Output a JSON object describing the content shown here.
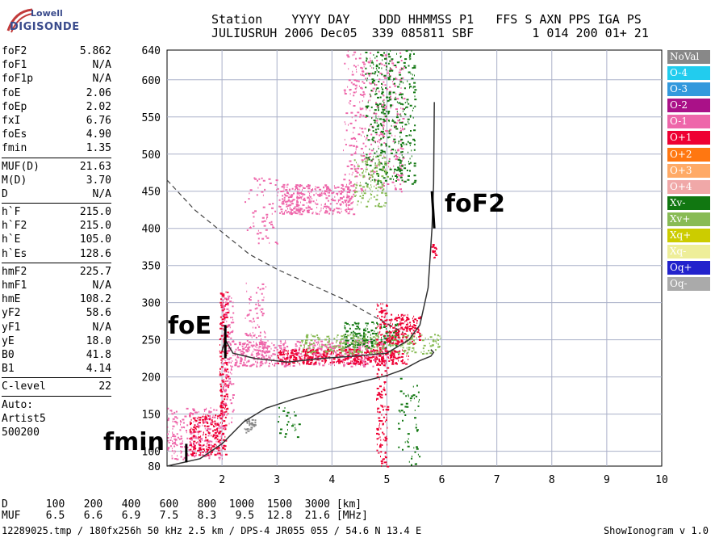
{
  "logo": {
    "top": "Lowell",
    "main": "DIGISONDE"
  },
  "header": {
    "line1": "Station    YYYY DAY    DDD HHMMSS P1   FFS S AXN PPS IGA PS",
    "line2": "JULIUSRUH 2006 Dec05  339 085811 SBF        1 014 200 01+ 21"
  },
  "params": [
    [
      [
        "foF2",
        "5.862"
      ],
      [
        "foF1",
        "N/A"
      ],
      [
        "foF1p",
        "N/A"
      ],
      [
        "foE",
        "2.06"
      ],
      [
        "foEp",
        "2.02"
      ],
      [
        "fxI",
        "6.76"
      ],
      [
        "foEs",
        "4.90"
      ],
      [
        "fmin",
        "1.35"
      ]
    ],
    [
      [
        "MUF(D)",
        "21.63"
      ],
      [
        "M(D)",
        "3.70"
      ],
      [
        "D",
        "N/A"
      ]
    ],
    [
      [
        "h`F",
        "215.0"
      ],
      [
        "h`F2",
        "215.0"
      ],
      [
        "h`E",
        "105.0"
      ],
      [
        "h`Es",
        "128.6"
      ]
    ],
    [
      [
        "hmF2",
        "225.7"
      ],
      [
        "hmF1",
        "N/A"
      ],
      [
        "hmE",
        "108.2"
      ],
      [
        "yF2",
        "58.6"
      ],
      [
        "yF1",
        "N/A"
      ],
      [
        "yE",
        "18.0"
      ],
      [
        "B0",
        "41.8"
      ],
      [
        "B1",
        "4.14"
      ]
    ],
    [
      [
        "C-level",
        "22"
      ]
    ]
  ],
  "auto": [
    "Auto:",
    "Artist5",
    "500200"
  ],
  "legend": [
    {
      "label": "NoVal",
      "color": "#888888"
    },
    {
      "label": "O-4",
      "color": "#22ccee"
    },
    {
      "label": "O-3",
      "color": "#3399dd"
    },
    {
      "label": "O-2",
      "color": "#aa1188"
    },
    {
      "label": "O-1",
      "color": "#ee66aa"
    },
    {
      "label": "O+1",
      "color": "#ee0033"
    },
    {
      "label": "O+2",
      "color": "#ff7711"
    },
    {
      "label": "O+3",
      "color": "#ffaa66"
    },
    {
      "label": "O+4",
      "color": "#f0a8a8"
    },
    {
      "label": "Xv-",
      "color": "#117711"
    },
    {
      "label": "Xv+",
      "color": "#88bb55"
    },
    {
      "label": "Xq+",
      "color": "#cccc00"
    },
    {
      "label": "Xq-",
      "color": "#eeee99"
    },
    {
      "label": "Oq+",
      "color": "#2222cc"
    },
    {
      "label": "Oq-",
      "color": "#aaaaaa"
    }
  ],
  "annotations": {
    "foF2": "foF2",
    "foE": "foE",
    "fmin": "fmin"
  },
  "footer": {
    "d_row": "D      100   200   400   600   800  1000  1500  3000 [km]",
    "muf_row": "MUF    6.5   6.6   6.9   7.5   8.3   9.5  12.8  21.6 [MHz]",
    "info": "12289025.tmp / 180fx256h 50 kHz 2.5 km / DPS-4 JR055 055 / 54.6 N 13.4 E",
    "version": "ShowIonogram v 1.0"
  },
  "chart_data": {
    "type": "scatter",
    "x_ticks": [
      "2",
      "3",
      "4",
      "5",
      "6",
      "7",
      "8",
      "9",
      "10"
    ],
    "y_ticks": [
      "80",
      "100",
      "150",
      "200",
      "250",
      "300",
      "350",
      "400",
      "450",
      "500",
      "550",
      "600",
      "640"
    ],
    "xlim": [
      1,
      10
    ],
    "ylim": [
      80,
      640
    ],
    "grid": true,
    "profile_curve": [
      [
        1.0,
        80
      ],
      [
        1.6,
        90
      ],
      [
        2.0,
        110
      ],
      [
        2.4,
        140
      ],
      [
        2.8,
        158
      ],
      [
        3.3,
        170
      ],
      [
        3.9,
        182
      ],
      [
        4.5,
        193
      ],
      [
        5.0,
        202
      ],
      [
        5.3,
        210
      ],
      [
        5.6,
        222
      ],
      [
        5.8,
        228
      ],
      [
        5.85,
        233
      ],
      [
        5.8,
        237
      ]
    ],
    "virtual_height_trace": [
      [
        2.0,
        235
      ],
      [
        2.06,
        250
      ],
      [
        2.2,
        232
      ],
      [
        2.6,
        225
      ],
      [
        3.2,
        220
      ],
      [
        3.8,
        225
      ],
      [
        4.4,
        228
      ],
      [
        5.0,
        232
      ],
      [
        5.4,
        250
      ],
      [
        5.6,
        270
      ],
      [
        5.75,
        320
      ],
      [
        5.82,
        400
      ],
      [
        5.85,
        460
      ],
      [
        5.862,
        570
      ]
    ],
    "dashed_curve": [
      [
        1.0,
        465
      ],
      [
        1.5,
        425
      ],
      [
        2.0,
        395
      ],
      [
        2.5,
        365
      ],
      [
        3.0,
        345
      ],
      [
        3.6,
        325
      ],
      [
        4.2,
        305
      ],
      [
        4.8,
        280
      ],
      [
        5.1,
        268
      ],
      [
        5.3,
        260
      ]
    ]
  }
}
